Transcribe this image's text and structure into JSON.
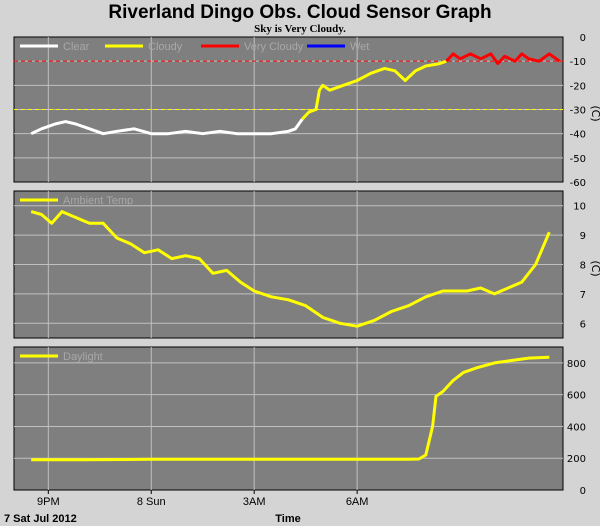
{
  "title": "Riverland Dingo Obs. Cloud Sensor Graph",
  "subtitle": "Sky is Very Cloudy.",
  "xaxis": {
    "ticks": [
      "9PM",
      "8 Sun",
      "3AM",
      "6AM"
    ],
    "date_label": "7 Sat Jul 2012",
    "label": "Time"
  },
  "colors": {
    "background": "#d4d4d4",
    "plot": "#7f7f7f",
    "grid": "#c0c0c0",
    "clear": "#ffffff",
    "cloudy": "#ffff00",
    "very_cloudy": "#ff0000",
    "wet": "#0000ff"
  },
  "chart_data": [
    {
      "type": "line",
      "id": "sky",
      "unit": "(C)",
      "ylim": [
        -60,
        0
      ],
      "yticks": [
        "0",
        "-10",
        "-20",
        "-30",
        "-40",
        "-50",
        "-60"
      ],
      "yvalues": [
        0,
        -10,
        -20,
        -30,
        -40,
        -50,
        -60
      ],
      "thresholds": [
        {
          "value": -10,
          "color": "#ff0000",
          "dash": true
        },
        {
          "value": -30,
          "color": "#ffff00",
          "dash": true
        }
      ],
      "legend": [
        {
          "label": "Clear",
          "color": "#ffffff"
        },
        {
          "label": "Cloudy",
          "color": "#ffff00"
        },
        {
          "label": "Very Cloudy",
          "color": "#ff0000"
        },
        {
          "label": "Wet",
          "color": "#0000ff"
        }
      ],
      "series": [
        {
          "name": "Clear",
          "color": "#ffffff",
          "x": [
            20.5,
            20.8,
            21.2,
            21.5,
            21.8,
            22.2,
            22.6,
            23.0,
            23.5,
            24.0,
            24.5,
            25.0,
            25.5,
            26.0,
            26.5,
            27.0,
            27.5,
            28.0,
            28.2,
            28.4
          ],
          "y": [
            -40,
            -38,
            -36,
            -35,
            -36,
            -38,
            -40,
            -39,
            -38,
            -40,
            -40,
            -39,
            -40,
            -39,
            -40,
            -40,
            -40,
            -39,
            -38,
            -34
          ]
        },
        {
          "name": "Cloudy",
          "color": "#ffff00",
          "x": [
            28.4,
            28.6,
            28.8,
            28.9,
            29.0,
            29.2,
            29.6,
            30.0,
            30.4,
            30.8,
            31.1,
            31.4,
            31.7,
            32.0,
            32.4,
            32.6
          ],
          "y": [
            -34,
            -31,
            -30,
            -22,
            -20,
            -22,
            -20,
            -18,
            -15,
            -13,
            -14,
            -18,
            -14,
            -12,
            -11,
            -10
          ]
        },
        {
          "name": "Very Cloudy",
          "color": "#ff0000",
          "x": [
            32.6,
            32.8,
            33.0,
            33.3,
            33.6,
            33.9,
            34.1,
            34.3,
            34.6,
            34.8,
            35.0,
            35.3,
            35.6,
            35.9
          ],
          "y": [
            -10,
            -7,
            -9,
            -7,
            -9,
            -7,
            -11,
            -8,
            -10,
            -7,
            -9,
            -10,
            -7,
            -10
          ]
        }
      ]
    },
    {
      "type": "line",
      "id": "ambient",
      "unit": "(C)",
      "ylim": [
        5.5,
        10.5
      ],
      "yticks": [
        "10",
        "9",
        "8",
        "7",
        "6"
      ],
      "yvalues": [
        10,
        9,
        8,
        7,
        6
      ],
      "legend": [
        {
          "label": "Ambient Temp",
          "color": "#ffff00"
        }
      ],
      "series": [
        {
          "name": "Ambient Temp",
          "color": "#ffff00",
          "x": [
            20.5,
            20.8,
            21.1,
            21.4,
            21.8,
            22.2,
            22.6,
            23.0,
            23.4,
            23.8,
            24.2,
            24.6,
            25.0,
            25.4,
            25.8,
            26.2,
            26.6,
            27.0,
            27.5,
            28.0,
            28.5,
            29.0,
            29.5,
            30.0,
            30.5,
            31.0,
            31.5,
            32.0,
            32.5,
            32.8,
            33.2,
            33.6,
            34.0,
            34.4,
            34.8,
            35.2,
            35.6
          ],
          "y": [
            9.8,
            9.7,
            9.4,
            9.8,
            9.6,
            9.4,
            9.4,
            8.9,
            8.7,
            8.4,
            8.5,
            8.2,
            8.3,
            8.2,
            7.7,
            7.8,
            7.4,
            7.1,
            6.9,
            6.8,
            6.6,
            6.2,
            6.0,
            5.9,
            6.1,
            6.4,
            6.6,
            6.9,
            7.1,
            7.1,
            7.1,
            7.2,
            7.0,
            7.2,
            7.4,
            8.0,
            9.1
          ]
        }
      ]
    },
    {
      "type": "line",
      "id": "daylight",
      "unit": "",
      "ylim": [
        0,
        900
      ],
      "yticks": [
        "800",
        "600",
        "400",
        "200",
        "0"
      ],
      "yvalues": [
        800,
        600,
        400,
        200,
        0
      ],
      "legend": [
        {
          "label": "Daylight",
          "color": "#ffff00"
        }
      ],
      "series": [
        {
          "name": "Daylight",
          "color": "#ffff00",
          "x": [
            20.5,
            22.0,
            24.0,
            26.0,
            28.0,
            30.0,
            31.5,
            31.8,
            32.0,
            32.2,
            32.3,
            32.5,
            32.8,
            33.1,
            33.5,
            34.0,
            34.5,
            35.0,
            35.6
          ],
          "y": [
            190,
            190,
            193,
            193,
            193,
            193,
            193,
            195,
            220,
            400,
            590,
            620,
            690,
            740,
            770,
            800,
            815,
            830,
            835
          ]
        }
      ]
    }
  ]
}
